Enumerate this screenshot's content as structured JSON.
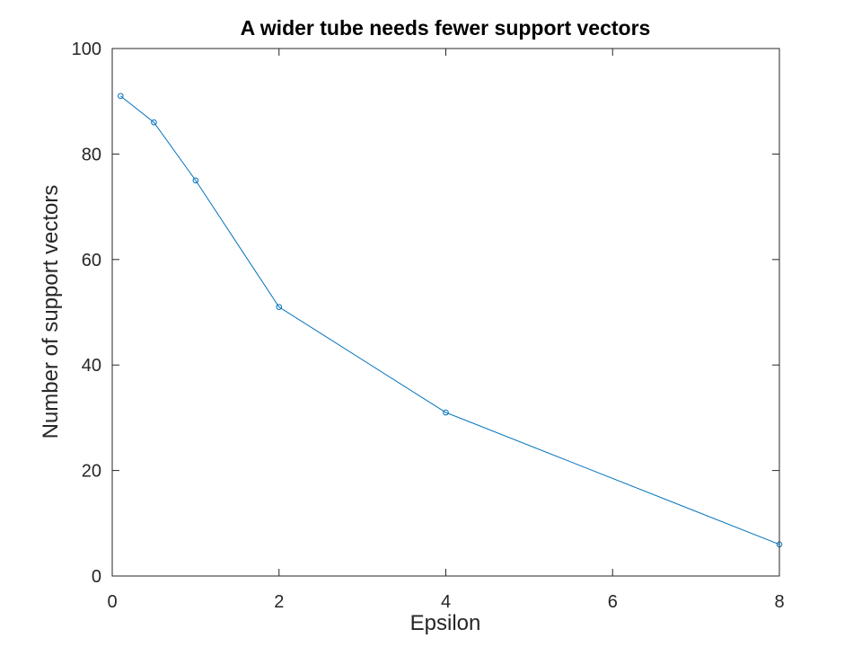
{
  "chart_data": {
    "type": "line",
    "title": "A wider tube needs fewer support vectors",
    "xlabel": "Epsilon",
    "ylabel": "Number of support vectors",
    "xlim": [
      0,
      8
    ],
    "ylim": [
      0,
      100
    ],
    "xticks": [
      0,
      2,
      4,
      6,
      8
    ],
    "yticks": [
      0,
      20,
      40,
      60,
      80,
      100
    ],
    "grid": false,
    "marker": "circle",
    "colors": {
      "line": "#0072bd",
      "axes": "#262626"
    },
    "series": [
      {
        "x": [
          0.1,
          0.5,
          1,
          2,
          4,
          8
        ],
        "y": [
          91,
          86,
          75,
          51,
          31,
          6
        ]
      }
    ]
  }
}
